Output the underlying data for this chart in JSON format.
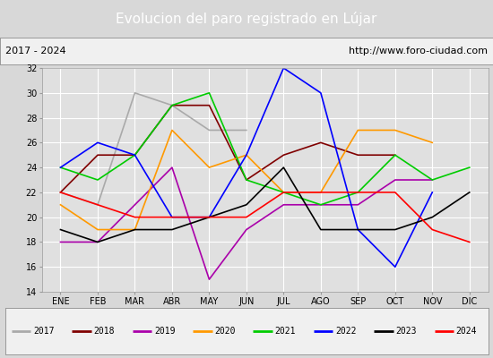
{
  "title": "Evolucion del paro registrado en Lújar",
  "subtitle_left": "2017 - 2024",
  "subtitle_right": "http://www.foro-ciudad.com",
  "months": [
    "ENE",
    "FEB",
    "MAR",
    "ABR",
    "MAY",
    "JUN",
    "JUL",
    "AGO",
    "SEP",
    "OCT",
    "NOV",
    "DIC"
  ],
  "ylim": [
    14,
    32
  ],
  "yticks": [
    14,
    16,
    18,
    20,
    22,
    24,
    26,
    28,
    30,
    32
  ],
  "series": {
    "2017": {
      "color": "#aaaaaa",
      "data": [
        22,
        21,
        30,
        29,
        27,
        27,
        null,
        null,
        null,
        null,
        null,
        null
      ]
    },
    "2018": {
      "color": "#800000",
      "data": [
        22,
        25,
        25,
        29,
        29,
        23,
        25,
        26,
        25,
        25,
        null,
        null
      ]
    },
    "2019": {
      "color": "#aa00aa",
      "data": [
        18,
        18,
        21,
        24,
        15,
        19,
        21,
        21,
        21,
        23,
        23,
        null
      ]
    },
    "2020": {
      "color": "#ff9900",
      "data": [
        21,
        19,
        19,
        27,
        24,
        25,
        22,
        22,
        27,
        27,
        26,
        null
      ]
    },
    "2021": {
      "color": "#00cc00",
      "data": [
        24,
        23,
        25,
        29,
        30,
        23,
        22,
        21,
        22,
        25,
        23,
        24
      ]
    },
    "2022": {
      "color": "#0000ff",
      "data": [
        24,
        26,
        25,
        20,
        20,
        25,
        32,
        30,
        19,
        16,
        22,
        null
      ]
    },
    "2023": {
      "color": "#000000",
      "data": [
        19,
        18,
        19,
        19,
        20,
        21,
        24,
        19,
        19,
        19,
        20,
        22
      ]
    },
    "2024": {
      "color": "#ff0000",
      "data": [
        22,
        21,
        20,
        20,
        20,
        20,
        22,
        22,
        22,
        22,
        19,
        18
      ]
    }
  },
  "background_color": "#d8d8d8",
  "plot_bg_color": "#e0e0e0",
  "title_bg_color": "#4f81bd",
  "title_text_color": "#ffffff",
  "header_bg_color": "#f0f0f0",
  "grid_color": "#ffffff",
  "legend_bg_color": "#f0f0f0"
}
